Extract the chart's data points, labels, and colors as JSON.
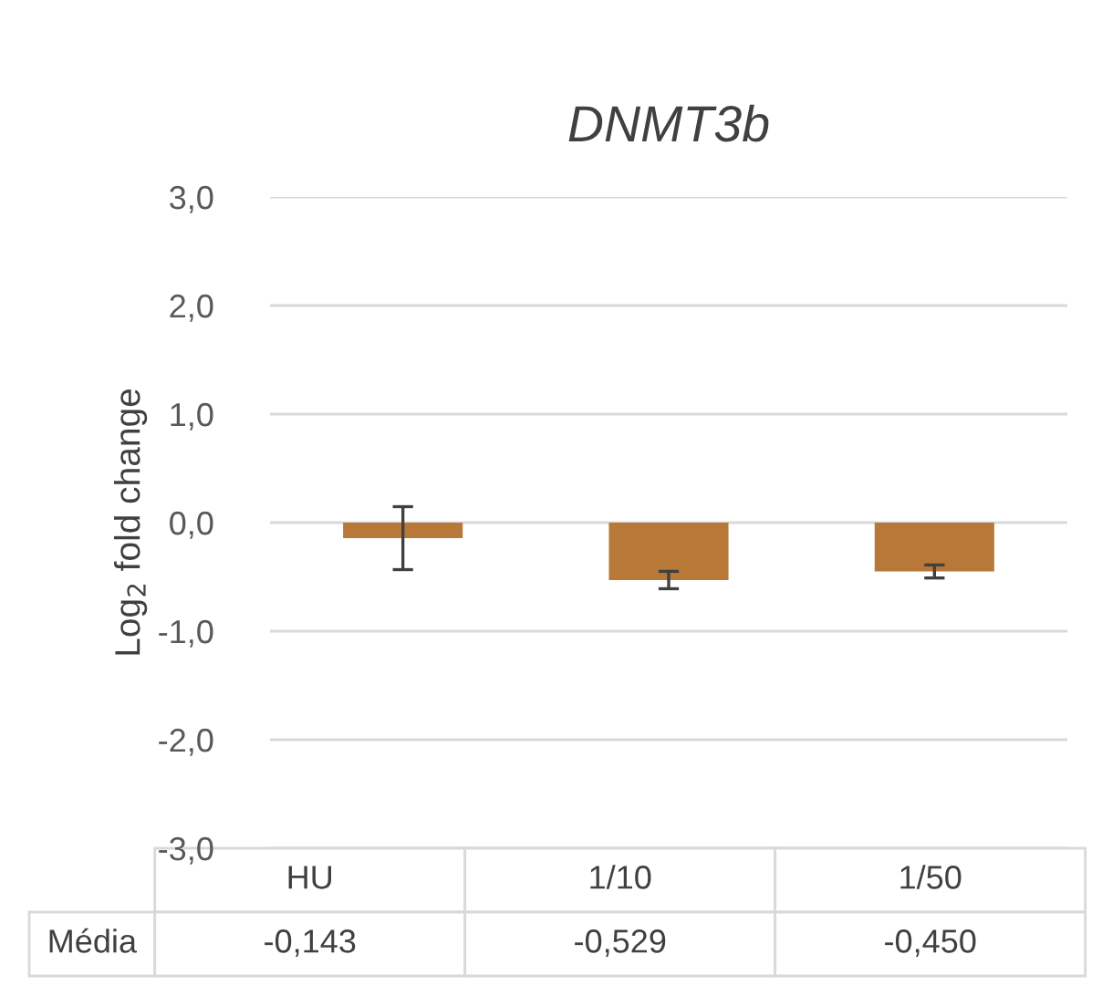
{
  "chart_data": {
    "type": "bar",
    "title": "DNMT3b",
    "ylabel": "Log$_{2}$ fold change",
    "categories": [
      "HU",
      "1/10",
      "1/50"
    ],
    "series": [
      {
        "name": "Média",
        "color": "#b87838",
        "values": [
          -0.143,
          -0.529,
          -0.45
        ],
        "errors": [
          0.29,
          0.08,
          0.06
        ],
        "value_labels": [
          "-0,143",
          "-0,529",
          "-0,450"
        ]
      }
    ],
    "ylim": [
      -3,
      3
    ],
    "yticks": [
      {
        "value": -3,
        "label": "-3,0"
      },
      {
        "value": -2,
        "label": "-2,0"
      },
      {
        "value": -1,
        "label": "-1,0"
      },
      {
        "value": 0,
        "label": "0,0"
      },
      {
        "value": 1,
        "label": "1,0"
      },
      {
        "value": 2,
        "label": "2,0"
      },
      {
        "value": 3,
        "label": "3,0"
      }
    ],
    "grid": "y",
    "legend": false
  }
}
